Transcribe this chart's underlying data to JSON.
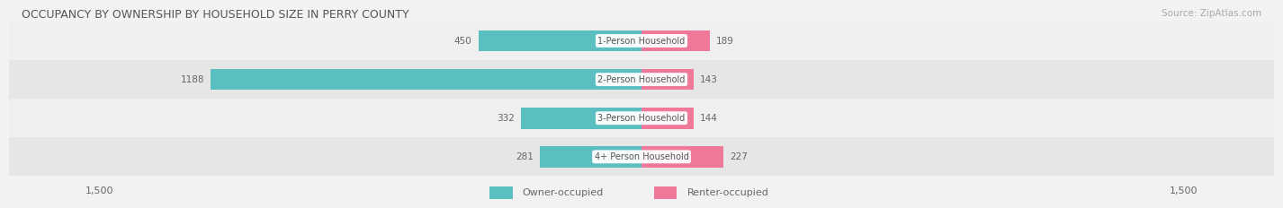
{
  "title": "OCCUPANCY BY OWNERSHIP BY HOUSEHOLD SIZE IN PERRY COUNTY",
  "source": "Source: ZipAtlas.com",
  "categories": [
    "1-Person Household",
    "2-Person Household",
    "3-Person Household",
    "4+ Person Household"
  ],
  "owner_values": [
    450,
    1188,
    332,
    281
  ],
  "renter_values": [
    189,
    143,
    144,
    227
  ],
  "owner_color": "#5bbfc2",
  "renter_color": "#f07898",
  "row_bg_colors": [
    "#efefef",
    "#e6e6e6",
    "#efefef",
    "#e6e6e6"
  ],
  "axis_max": 1500,
  "fig_bg_color": "#f2f2f2",
  "title_color": "#555555",
  "source_color": "#aaaaaa",
  "value_color": "#666666",
  "label_color": "#555555",
  "title_fontsize": 9,
  "source_fontsize": 7.5,
  "label_fontsize": 7,
  "value_fontsize": 7.5,
  "axis_label_fontsize": 8,
  "legend_fontsize": 8
}
